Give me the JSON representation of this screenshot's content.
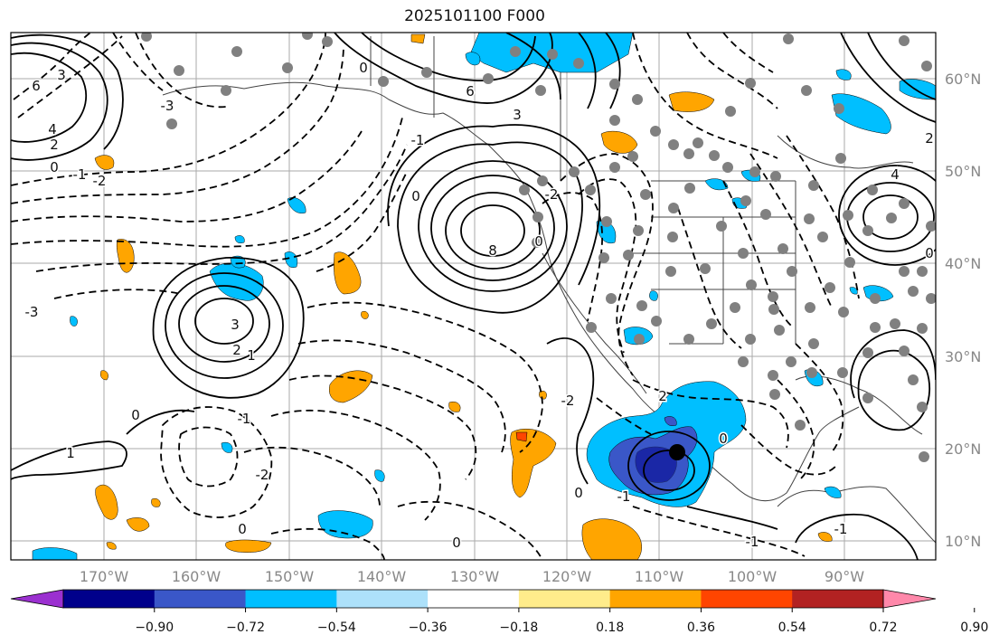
{
  "title": "2025101100 F000",
  "lat_labels": [
    "60°N",
    "50°N",
    "40°N",
    "30°N",
    "20°N",
    "10°N"
  ],
  "lon_labels": [
    "170°W",
    "160°W",
    "150°W",
    "140°W",
    "130°W",
    "120°W",
    "110°W",
    "100°W",
    "90°W"
  ],
  "colorbar": {
    "ticks": [
      "−0.90",
      "−0.72",
      "−0.54",
      "−0.36",
      "−0.18",
      "0.18",
      "0.36",
      "0.54",
      "0.72",
      "0.90"
    ],
    "colors": [
      "#9b30d0",
      "#00008b",
      "#3a57c8",
      "#00bfff",
      "#ade1fa",
      "#ffffff",
      "#ffec8b",
      "#ffa500",
      "#ff4500",
      "#b22222",
      "#ff88aa"
    ]
  },
  "contour_labels": [
    "6",
    "3",
    "4",
    "2",
    "0",
    "-1",
    "-2",
    "-3",
    "0",
    "6",
    "3",
    "-1",
    "0",
    "8",
    "0",
    "-2",
    "-3",
    "3",
    "2",
    "1",
    "0",
    "-1",
    "1",
    "-2",
    "0",
    "0",
    "-2",
    "0",
    "-1",
    "2",
    "0",
    "-1",
    "4",
    "2",
    "-1",
    "0"
  ],
  "colors": {
    "frame": "#000000",
    "grid": "#aaaaaa",
    "land": "#666666",
    "station": "#808080",
    "contour": "#000000"
  }
}
